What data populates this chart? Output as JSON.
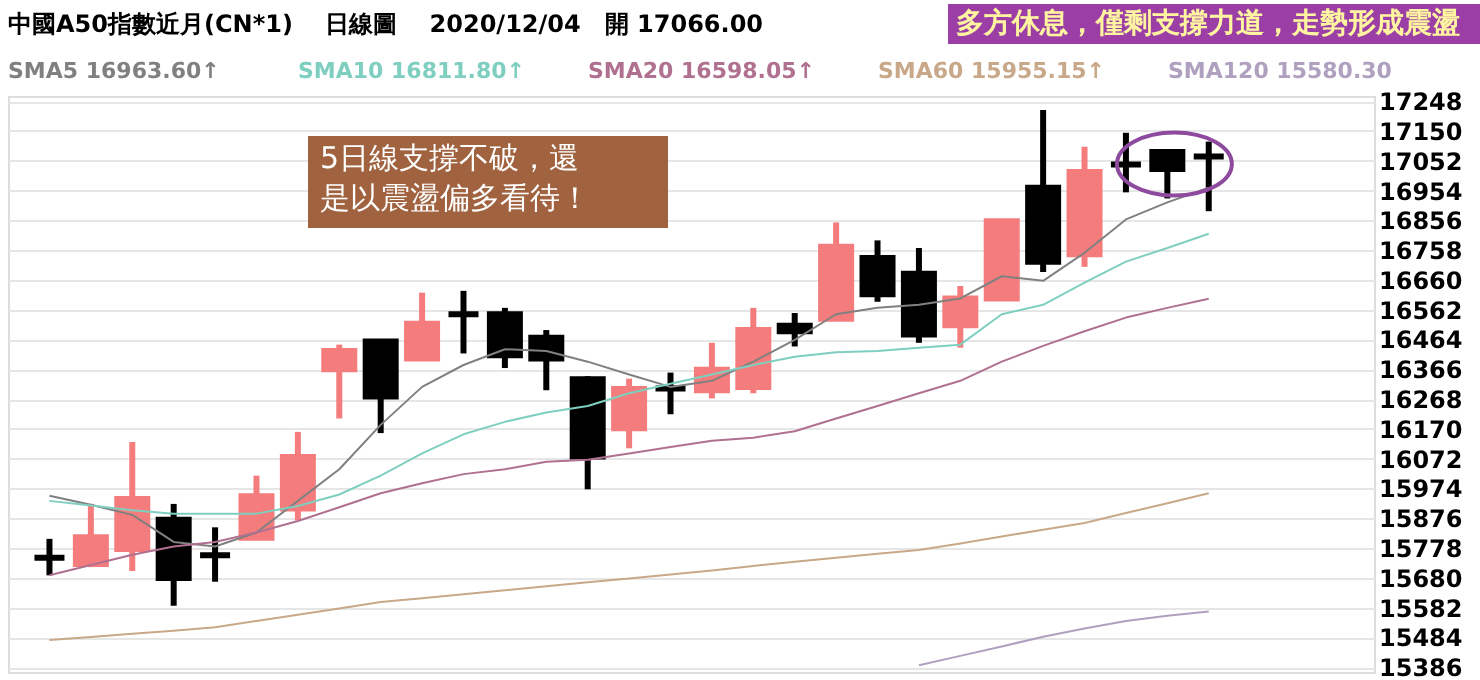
{
  "chart_data": {
    "type": "candlestick",
    "title": "中國A50指數近月(CN*1)　 日線圖　 2020/12/04　開 17066.00",
    "categories": [
      null,
      null,
      null,
      null,
      null,
      null,
      null,
      null,
      null,
      null,
      null,
      null,
      null,
      null,
      null,
      null,
      null,
      null,
      null,
      null,
      null,
      null,
      null,
      null,
      null,
      null,
      null,
      null,
      null
    ],
    "ohlc": [
      [
        15746,
        15808,
        15688,
        15746
      ],
      [
        15725,
        15923,
        15715,
        15813
      ],
      [
        15775,
        16127,
        15702,
        15939
      ],
      [
        15871,
        15923,
        15588,
        15679
      ],
      [
        15754,
        15846,
        15667,
        15754
      ],
      [
        15812,
        16016,
        15812,
        15948
      ],
      [
        15908,
        16160,
        15869,
        16077
      ],
      [
        16366,
        16447,
        16204,
        16426
      ],
      [
        16457,
        16457,
        16156,
        16276
      ],
      [
        16401,
        16618,
        16401,
        16516
      ],
      [
        16547,
        16624,
        16418,
        16547
      ],
      [
        16547,
        16568,
        16370,
        16412
      ],
      [
        16470,
        16495,
        16297,
        16401
      ],
      [
        16333,
        16343,
        15971,
        16079
      ],
      [
        16172,
        16335,
        16106,
        16301
      ],
      [
        16303,
        16355,
        16218,
        16303
      ],
      [
        16297,
        16453,
        16270,
        16364
      ],
      [
        16308,
        16568,
        16287,
        16495
      ],
      [
        16509,
        16551,
        16441,
        16491
      ],
      [
        16532,
        16849,
        16532,
        16769
      ],
      [
        16732,
        16790,
        16588,
        16613
      ],
      [
        16680,
        16765,
        16453,
        16480
      ],
      [
        16511,
        16640,
        16437,
        16599
      ],
      [
        16599,
        16859,
        16593,
        16853
      ],
      [
        16963,
        17219,
        16686,
        16720
      ],
      [
        16744,
        17098,
        16703,
        17015
      ],
      [
        17040,
        17144,
        16948,
        17040
      ],
      [
        17081,
        17081,
        16928,
        17025
      ],
      [
        17066,
        17115,
        16886,
        17066
      ]
    ],
    "colors": [
      "#000000",
      "#f47c7c",
      "#f47c7c",
      "#000000",
      "#000000",
      "#f47c7c",
      "#f47c7c",
      "#f47c7c",
      "#000000",
      "#f47c7c",
      "#000000",
      "#000000",
      "#000000",
      "#000000",
      "#f47c7c",
      "#000000",
      "#f47c7c",
      "#f47c7c",
      "#000000",
      "#f47c7c",
      "#000000",
      "#000000",
      "#f47c7c",
      "#f47c7c",
      "#000000",
      "#f47c7c",
      "#000000",
      "#000000",
      "#000000"
    ],
    "series": [
      {
        "name": "SMA5 16963.60↑",
        "type": "line",
        "color": "#808080",
        "values": [
          15950,
          15920,
          15887,
          15798,
          15783,
          15829,
          15933,
          16037,
          16183,
          16308,
          16380,
          16432,
          16426,
          16391,
          16349,
          16308,
          16328,
          16391,
          16463,
          16547,
          16568,
          16578,
          16599,
          16672,
          16657,
          16749,
          16859,
          16915,
          16963
        ]
      },
      {
        "name": "SMA10 16811.80↑",
        "type": "line",
        "color": "#7fcfc0",
        "values": [
          15933,
          15918,
          15902,
          15891,
          15891,
          15891,
          15916,
          15954,
          16016,
          16089,
          16152,
          16193,
          16224,
          16245,
          16287,
          16318,
          16349,
          16380,
          16407,
          16422,
          16426,
          16437,
          16447,
          16547,
          16578,
          16651,
          16720,
          16765,
          16812
        ]
      },
      {
        "name": "SMA20 16598.05↑",
        "type": "line",
        "color": "#b07090",
        "values": [
          15688,
          15722,
          15756,
          15783,
          15798,
          15829,
          15867,
          15912,
          15958,
          15991,
          16021,
          16037,
          16062,
          16068,
          16089,
          16110,
          16131,
          16141,
          16162,
          16204,
          16245,
          16287,
          16328,
          16391,
          16443,
          16491,
          16536,
          16568,
          16598
        ]
      },
      {
        "name": "SMA60 15955.15↑",
        "type": "line",
        "color": "#c8a888",
        "values": [
          15475,
          15485,
          15496,
          15506,
          15517,
          15538,
          15558,
          15579,
          15600,
          15613,
          15626,
          15639,
          15652,
          15665,
          15678,
          15691,
          15704,
          15719,
          15733,
          15746,
          15759,
          15771,
          15793,
          15816,
          15838,
          15860,
          15893,
          15925,
          15958
        ]
      },
      {
        "name": "SMA120 15580.30",
        "type": "line",
        "color": "#b0a0c0",
        "values": [
          null,
          null,
          null,
          null,
          null,
          null,
          null,
          null,
          null,
          null,
          null,
          null,
          null,
          null,
          null,
          null,
          null,
          null,
          null,
          null,
          null,
          15392,
          15423,
          15454,
          15486,
          15513,
          15538,
          15555,
          15569
        ]
      }
    ],
    "ylim": [
      15370,
      17265
    ],
    "yticks": [
      17248,
      17150,
      17052,
      16954,
      16856,
      16758,
      16660,
      16562,
      16464,
      16366,
      16268,
      16170,
      16072,
      15974,
      15876,
      15778,
      15680,
      15582,
      15484,
      15386
    ],
    "grid": "y",
    "tick_labels": "y",
    "annotations": [
      "多方休息，僅剩支撐力道，走勢形成震盪",
      "5日線支撐不破，還是以震盪偏多看待！"
    ]
  }
}
